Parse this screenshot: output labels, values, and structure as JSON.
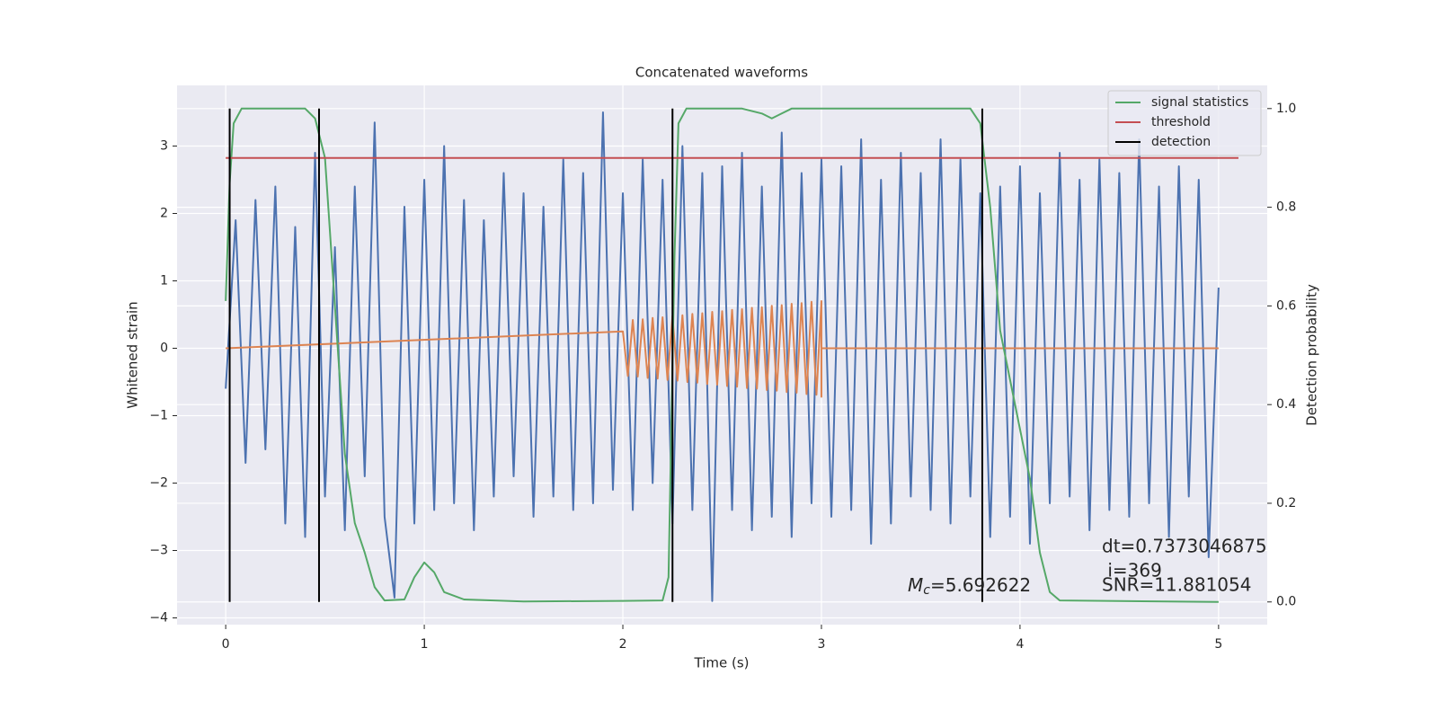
{
  "chart_data": {
    "type": "line",
    "title": "Concatenated waveforms",
    "xlabel": "Time (s)",
    "ylabel": "Whitened strain",
    "y2label": "Detection probability",
    "xlim": [
      -0.245,
      5.245
    ],
    "ylim": [
      -4.1,
      3.9
    ],
    "y2lim": [
      -0.046,
      1.047
    ],
    "xticks": [
      0,
      1,
      2,
      3,
      4,
      5
    ],
    "yticks": [
      {
        "value": -4,
        "label": "−4"
      },
      {
        "value": -3,
        "label": "−3"
      },
      {
        "value": -2,
        "label": "−2"
      },
      {
        "value": -1,
        "label": "−1"
      },
      0,
      1,
      2,
      3
    ],
    "y2ticks": [
      {
        "value": 0,
        "label": "0.0"
      },
      0.2,
      0.4,
      0.6,
      0.8,
      {
        "value": 1,
        "label": "1.0"
      }
    ],
    "grid": true,
    "legend": "upper right",
    "series": [
      {
        "color": "#4c72b0",
        "x": [
          0,
          0.05,
          0.1,
          0.15,
          0.2,
          0.25,
          0.3,
          0.35,
          0.4,
          0.45,
          0.5,
          0.55,
          0.6,
          0.65,
          0.7,
          0.75,
          0.8,
          0.85,
          0.9,
          0.95,
          1,
          1.05,
          1.1,
          1.15,
          1.2,
          1.25,
          1.3,
          1.35,
          1.4,
          1.45,
          1.5,
          1.55,
          1.6,
          1.65,
          1.7,
          1.75,
          1.8,
          1.85,
          1.9,
          1.95,
          2,
          2.05,
          2.1,
          2.15,
          2.2,
          2.25,
          2.3,
          2.35,
          2.4,
          2.45,
          2.5,
          2.55,
          2.6,
          2.65,
          2.7,
          2.75,
          2.8,
          2.85,
          2.9,
          2.95,
          3,
          3.05,
          3.1,
          3.15,
          3.2,
          3.25,
          3.3,
          3.35,
          3.4,
          3.45,
          3.5,
          3.55,
          3.6,
          3.65,
          3.7,
          3.75,
          3.8,
          3.85,
          3.9,
          3.95,
          4,
          4.05,
          4.1,
          4.15,
          4.2,
          4.25,
          4.3,
          4.35,
          4.4,
          4.45,
          4.5,
          4.55,
          4.6,
          4.65,
          4.7,
          4.75,
          4.8,
          4.85,
          4.9,
          4.95,
          5
        ],
        "values": [
          -0.6,
          1.9,
          -1.7,
          2.2,
          -1.5,
          2.4,
          -2.6,
          1.8,
          -2.8,
          2.9,
          -2.2,
          1.5,
          -2.7,
          2.4,
          -1.9,
          3.35,
          -2.5,
          -3.7,
          2.1,
          -2.6,
          2.5,
          -2.4,
          3.0,
          -2.3,
          2.2,
          -2.7,
          1.9,
          -2.2,
          2.6,
          -1.9,
          2.3,
          -2.5,
          2.1,
          -2.2,
          2.8,
          -2.4,
          2.6,
          -2.3,
          3.5,
          -2.1,
          2.3,
          -2.4,
          2.8,
          -2.0,
          2.5,
          -2.6,
          3.0,
          -2.4,
          2.6,
          -3.75,
          2.7,
          -2.4,
          2.9,
          -2.7,
          2.4,
          -2.5,
          3.2,
          -2.8,
          2.6,
          -2.3,
          2.8,
          -2.5,
          2.7,
          -2.4,
          3.1,
          -2.9,
          2.5,
          -2.6,
          2.9,
          -2.2,
          2.6,
          -2.4,
          3.1,
          -2.6,
          2.8,
          -2.2,
          2.3,
          -2.8,
          2.4,
          -2.5,
          2.7,
          -2.9,
          2.3,
          -2.3,
          2.9,
          -2.2,
          2.5,
          -2.7,
          2.8,
          -2.4,
          2.6,
          -2.5,
          3.1,
          -2.3,
          2.4,
          -2.8,
          2.7,
          -2.2,
          2.5,
          -3.1,
          0.9
        ]
      },
      {
        "color": "#dd8452",
        "x": [
          0,
          2,
          2.025,
          2.05,
          2.075,
          2.1,
          2.125,
          2.15,
          2.175,
          2.2,
          2.225,
          2.25,
          2.275,
          2.3,
          2.325,
          2.35,
          2.375,
          2.4,
          2.425,
          2.45,
          2.475,
          2.5,
          2.525,
          2.55,
          2.575,
          2.6,
          2.625,
          2.65,
          2.675,
          2.7,
          2.725,
          2.75,
          2.775,
          2.8,
          2.825,
          2.85,
          2.875,
          2.9,
          2.925,
          2.95,
          2.975,
          3,
          3,
          3,
          5
        ],
        "values": [
          0,
          0.25,
          -0.41,
          0.42,
          -0.42,
          0.43,
          -0.44,
          0.45,
          -0.45,
          0.46,
          -0.47,
          0.48,
          -0.48,
          0.49,
          -0.5,
          0.51,
          -0.51,
          0.52,
          -0.53,
          0.54,
          -0.54,
          0.55,
          -0.56,
          0.57,
          -0.57,
          0.58,
          -0.59,
          0.6,
          -0.6,
          0.61,
          -0.62,
          0.63,
          -0.63,
          0.64,
          -0.65,
          0.66,
          -0.66,
          0.67,
          -0.68,
          0.69,
          -0.69,
          0.7,
          -0.72,
          0,
          0
        ]
      },
      {
        "name": "signal statistics",
        "color": "#55a868",
        "axis": "y2",
        "x": [
          0,
          0.02,
          0.04,
          0.08,
          0.4,
          0.45,
          0.5,
          0.55,
          0.6,
          0.65,
          0.7,
          0.75,
          0.8,
          0.9,
          0.95,
          1,
          1.05,
          1.1,
          1.2,
          1.5,
          2,
          2.2,
          2.23,
          2.26,
          2.28,
          2.32,
          2.6,
          2.7,
          2.75,
          2.8,
          2.85,
          3.75,
          3.8,
          3.85,
          3.9,
          4,
          4.05,
          4.1,
          4.15,
          4.2,
          5
        ],
        "values": [
          0.61,
          0.85,
          0.97,
          1,
          1,
          0.98,
          0.9,
          0.6,
          0.3,
          0.16,
          0.1,
          0.03,
          0.003,
          0.005,
          0.05,
          0.08,
          0.06,
          0.02,
          0.005,
          0.001,
          0.002,
          0.003,
          0.05,
          0.7,
          0.97,
          1,
          1,
          0.99,
          0.98,
          0.99,
          1,
          1,
          0.97,
          0.8,
          0.55,
          0.35,
          0.25,
          0.1,
          0.02,
          0.003,
          0
        ]
      },
      {
        "name": "threshold",
        "color": "#c44e52",
        "axis": "y2",
        "x": [
          0,
          5.1
        ],
        "values": [
          0.9,
          0.9
        ]
      },
      {
        "name": "detection",
        "color": "#000000",
        "axis": "y2",
        "kind": "vline",
        "x": [
          0.02,
          0.47,
          2.25,
          3.81
        ],
        "span": [
          0,
          1
        ]
      }
    ],
    "annotations": {
      "chirp_mass": {
        "symbol": "M",
        "subscript": "c",
        "text": "=5.692622"
      },
      "lines": [
        "dt=0.7373046875",
        " i=369",
        "SNR=11.881054"
      ]
    }
  }
}
